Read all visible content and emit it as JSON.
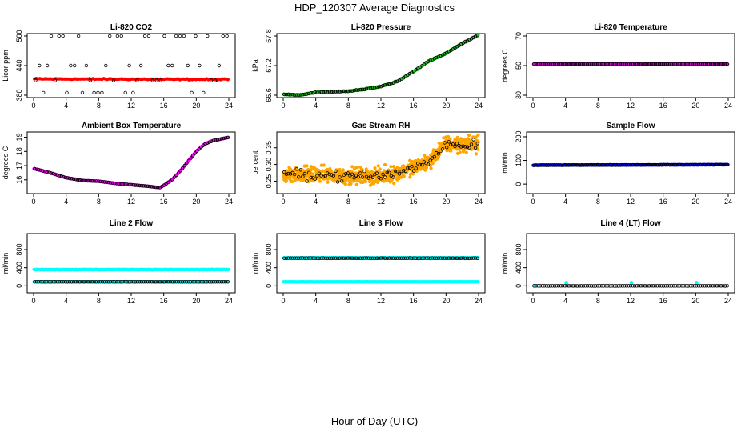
{
  "title": "HDP_120307  Average Diagnostics",
  "xlabel": "Hour of Day (UTC)",
  "colors": {
    "black": "#000000",
    "red": "#ff0000",
    "green": "#22cc22",
    "magenta": "#ff00ff",
    "orange": "#ffa500",
    "blue": "#0000ff",
    "cyan": "#00ffff"
  },
  "chart_data": [
    {
      "type": "scatter",
      "title": "Li-820 CO2",
      "ylabel": "Licor ppm",
      "xlim": [
        0,
        24
      ],
      "ylim": [
        380,
        500
      ],
      "xticks": [
        "0",
        "4",
        "8",
        "12",
        "16",
        "20",
        "24"
      ],
      "yticks": [
        "380",
        "440",
        "500"
      ],
      "series": [
        {
          "color": "red",
          "pattern": "flat",
          "start": 413,
          "end": 412,
          "jitter": 1.5,
          "n": 110,
          "marker": "dot"
        },
        {
          "color": "black",
          "pattern": "levels",
          "levels": [
            500,
            440,
            410,
            385
          ],
          "n": 50,
          "marker": "circle"
        }
      ]
    },
    {
      "type": "scatter",
      "title": "Li-820 Pressure",
      "ylabel": "kPa",
      "xlim": [
        0,
        24
      ],
      "ylim": [
        66.6,
        67.8
      ],
      "xticks": [
        "0",
        "4",
        "8",
        "12",
        "16",
        "20",
        "24"
      ],
      "yticks": [
        "66.6",
        "67.2",
        "67.8"
      ],
      "series": [
        {
          "color": "green",
          "pattern": "curve",
          "points": [
            [
              0,
              66.62
            ],
            [
              2,
              66.6
            ],
            [
              4,
              66.66
            ],
            [
              8,
              66.68
            ],
            [
              10,
              66.72
            ],
            [
              12,
              66.78
            ],
            [
              14,
              66.88
            ],
            [
              16,
              67.08
            ],
            [
              18,
              67.3
            ],
            [
              20,
              67.45
            ],
            [
              22,
              67.65
            ],
            [
              24,
              67.82
            ]
          ],
          "jitter": 0.015,
          "n": 240,
          "marker": "dot"
        },
        {
          "color": "black",
          "pattern": "curve",
          "points": [
            [
              0,
              66.62
            ],
            [
              2,
              66.6
            ],
            [
              4,
              66.66
            ],
            [
              8,
              66.68
            ],
            [
              10,
              66.72
            ],
            [
              12,
              66.78
            ],
            [
              14,
              66.88
            ],
            [
              16,
              67.08
            ],
            [
              18,
              67.3
            ],
            [
              20,
              67.45
            ],
            [
              22,
              67.65
            ],
            [
              24,
              67.82
            ]
          ],
          "jitter": 0.01,
          "n": 95,
          "marker": "circle"
        }
      ]
    },
    {
      "type": "scatter",
      "title": "Li-820 Temperature",
      "ylabel": "degrees C",
      "xlim": [
        0,
        24
      ],
      "ylim": [
        30,
        70
      ],
      "xticks": [
        "0",
        "4",
        "8",
        "12",
        "16",
        "20",
        "24"
      ],
      "yticks": [
        "30",
        "50",
        "70"
      ],
      "series": [
        {
          "color": "magenta",
          "pattern": "flat",
          "start": 51,
          "end": 51,
          "jitter": 0.1,
          "n": 160,
          "marker": "dot"
        },
        {
          "color": "black",
          "pattern": "flat",
          "start": 51,
          "end": 51,
          "jitter": 0.05,
          "n": 95,
          "marker": "circle"
        }
      ]
    },
    {
      "type": "scatter",
      "title": "Ambient Box Temperature",
      "ylabel": "degrees C",
      "xlim": [
        0,
        24
      ],
      "ylim": [
        15.2,
        19.2
      ],
      "xticks": [
        "0",
        "4",
        "8",
        "12",
        "16",
        "20",
        "24"
      ],
      "yticks": [
        "16",
        "17",
        "18",
        "19"
      ],
      "series": [
        {
          "color": "magenta",
          "pattern": "curve",
          "points": [
            [
              0,
              16.8
            ],
            [
              2,
              16.5
            ],
            [
              4,
              16.15
            ],
            [
              6,
              15.95
            ],
            [
              8,
              15.9
            ],
            [
              10,
              15.75
            ],
            [
              12,
              15.65
            ],
            [
              14,
              15.55
            ],
            [
              15.5,
              15.45
            ],
            [
              16,
              15.6
            ],
            [
              17,
              16.0
            ],
            [
              18,
              16.6
            ],
            [
              19,
              17.3
            ],
            [
              20,
              18.0
            ],
            [
              21,
              18.5
            ],
            [
              22,
              18.75
            ],
            [
              24,
              19.0
            ]
          ],
          "jitter": 0.02,
          "n": 240,
          "marker": "dot"
        },
        {
          "color": "black",
          "pattern": "curve",
          "points": [
            [
              0,
              16.8
            ],
            [
              2,
              16.5
            ],
            [
              4,
              16.15
            ],
            [
              6,
              15.95
            ],
            [
              8,
              15.9
            ],
            [
              10,
              15.75
            ],
            [
              12,
              15.65
            ],
            [
              14,
              15.55
            ],
            [
              15.5,
              15.45
            ],
            [
              16,
              15.6
            ],
            [
              17,
              16.0
            ],
            [
              18,
              16.6
            ],
            [
              19,
              17.3
            ],
            [
              20,
              18.0
            ],
            [
              21,
              18.5
            ],
            [
              22,
              18.75
            ],
            [
              24,
              19.0
            ]
          ],
          "jitter": 0.01,
          "n": 95,
          "marker": "circle"
        }
      ]
    },
    {
      "type": "scatter",
      "title": "Gas Stream RH",
      "ylabel": "percent",
      "xlim": [
        0,
        24
      ],
      "ylim": [
        0.22,
        0.39
      ],
      "xticks": [
        "0",
        "4",
        "8",
        "12",
        "16",
        "20",
        "24"
      ],
      "yticks": [
        "0.25",
        "0.30",
        "0.35"
      ],
      "series": [
        {
          "color": "orange",
          "pattern": "curve",
          "points": [
            [
              0,
              0.27
            ],
            [
              4,
              0.27
            ],
            [
              8,
              0.265
            ],
            [
              12,
              0.265
            ],
            [
              14,
              0.275
            ],
            [
              16,
              0.29
            ],
            [
              18,
              0.31
            ],
            [
              19,
              0.34
            ],
            [
              20,
              0.36
            ],
            [
              22,
              0.36
            ],
            [
              24,
              0.36
            ]
          ],
          "jitter": 0.035,
          "n": 700,
          "marker": "dot"
        },
        {
          "color": "black",
          "pattern": "curve",
          "points": [
            [
              0,
              0.27
            ],
            [
              4,
              0.27
            ],
            [
              8,
              0.265
            ],
            [
              12,
              0.265
            ],
            [
              14,
              0.275
            ],
            [
              16,
              0.29
            ],
            [
              18,
              0.31
            ],
            [
              19,
              0.34
            ],
            [
              20,
              0.36
            ],
            [
              22,
              0.36
            ],
            [
              24,
              0.36
            ]
          ],
          "jitter": 0.022,
          "n": 95,
          "marker": "circle"
        }
      ]
    },
    {
      "type": "scatter",
      "title": "Sample Flow",
      "ylabel": "ml/min",
      "xlim": [
        0,
        24
      ],
      "ylim": [
        -30,
        210
      ],
      "xticks": [
        "0",
        "4",
        "8",
        "12",
        "16",
        "20",
        "24"
      ],
      "yticks": [
        "0",
        "100",
        "200"
      ],
      "series": [
        {
          "color": "blue",
          "pattern": "flat",
          "start": 80,
          "end": 82,
          "jitter": 1.5,
          "n": 300,
          "marker": "dot"
        },
        {
          "color": "black",
          "pattern": "flat",
          "start": 80,
          "end": 82,
          "jitter": 1,
          "n": 95,
          "marker": "circle"
        }
      ]
    },
    {
      "type": "scatter",
      "title": "Line 2 Flow",
      "ylabel": "ml/min",
      "xlim": [
        0,
        24
      ],
      "ylim": [
        -100,
        1100
      ],
      "xticks": [
        "0",
        "4",
        "8",
        "12",
        "16",
        "20",
        "24"
      ],
      "yticks": [
        "0",
        "400",
        "800"
      ],
      "series": [
        {
          "color": "cyan",
          "pattern": "flat",
          "start": 360,
          "end": 360,
          "jitter": 8,
          "n": 260,
          "marker": "dot"
        },
        {
          "color": "cyan",
          "pattern": "flat",
          "start": 90,
          "end": 90,
          "jitter": 3,
          "n": 200,
          "marker": "dot"
        },
        {
          "color": "black",
          "pattern": "flat",
          "start": 90,
          "end": 90,
          "jitter": 2,
          "n": 95,
          "marker": "circle"
        }
      ]
    },
    {
      "type": "scatter",
      "title": "Line 3 Flow",
      "ylabel": "ml/min",
      "xlim": [
        0,
        24
      ],
      "ylim": [
        -100,
        1100
      ],
      "xticks": [
        "0",
        "4",
        "8",
        "12",
        "16",
        "20",
        "24"
      ],
      "yticks": [
        "0",
        "400",
        "800"
      ],
      "series": [
        {
          "color": "cyan",
          "pattern": "flat",
          "start": 620,
          "end": 620,
          "jitter": 6,
          "n": 220,
          "marker": "dot"
        },
        {
          "color": "cyan",
          "pattern": "flat",
          "start": 90,
          "end": 90,
          "jitter": 3,
          "n": 260,
          "marker": "dot"
        },
        {
          "color": "black",
          "pattern": "flat",
          "start": 610,
          "end": 610,
          "jitter": 4,
          "n": 95,
          "marker": "circle"
        }
      ]
    },
    {
      "type": "scatter",
      "title": "Line 4 (LT) Flow",
      "ylabel": "ml/min",
      "xlim": [
        0,
        24
      ],
      "ylim": [
        -100,
        1100
      ],
      "xticks": [
        "0",
        "4",
        "8",
        "12",
        "16",
        "20",
        "24"
      ],
      "yticks": [
        "0",
        "400",
        "800"
      ],
      "series": [
        {
          "color": "cyan",
          "pattern": "spikes",
          "base": 0,
          "spikes": [
            [
              0.2,
              0
            ],
            [
              4.1,
              70
            ],
            [
              12.1,
              70
            ],
            [
              20.1,
              70
            ]
          ],
          "n": 0,
          "marker": "dot"
        },
        {
          "color": "black",
          "pattern": "flat",
          "start": 0,
          "end": 0,
          "jitter": 1,
          "n": 95,
          "marker": "circle"
        }
      ]
    }
  ]
}
